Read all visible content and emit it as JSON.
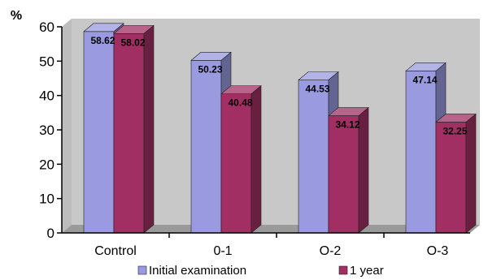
{
  "chart_data": {
    "type": "bar",
    "ylabel": "%",
    "ylim": [
      0,
      60
    ],
    "yticks": [
      0,
      10,
      20,
      30,
      40,
      50,
      60
    ],
    "grid": false,
    "legend_position": "bottom",
    "categories": [
      "Control",
      "0-1",
      "O-2",
      "O-3"
    ],
    "series": [
      {
        "name": "Initial examination",
        "color": "#9a9ae0",
        "values": [
          58.62,
          50.23,
          44.53,
          47.14
        ],
        "labels": [
          "58.62",
          "50.23",
          "44.53",
          "47.14"
        ]
      },
      {
        "name": "1 year",
        "color": "#a12f63",
        "values": [
          58.02,
          40.48,
          34.12,
          32.25
        ],
        "labels": [
          "58.02",
          "40.48",
          "34.12",
          "32.25"
        ]
      }
    ]
  }
}
